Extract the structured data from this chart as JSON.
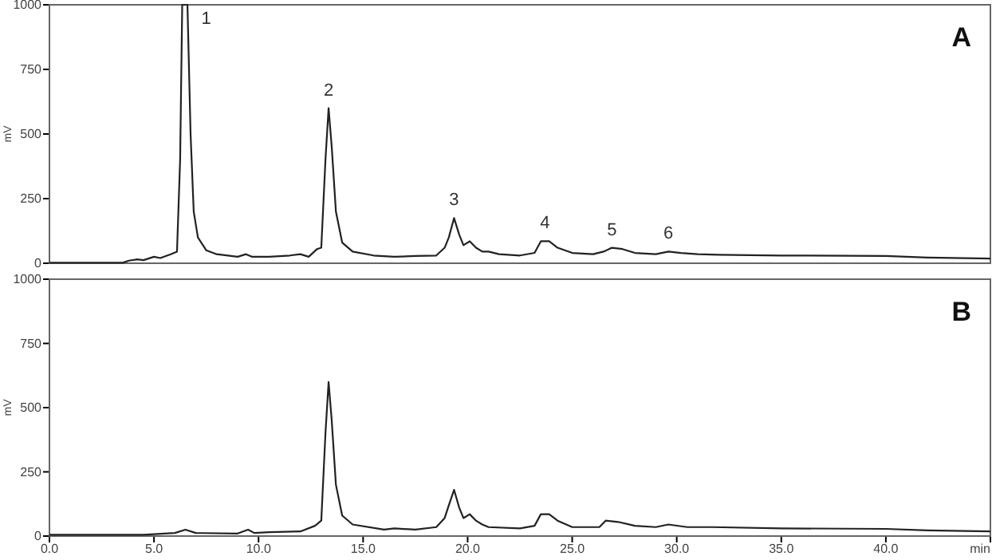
{
  "chart_data": [
    {
      "type": "line",
      "title": "A",
      "ylabel": "mV",
      "xlim": [
        0,
        45
      ],
      "ylim": [
        0,
        1000
      ],
      "yticks": [
        0,
        250,
        500,
        750,
        1000
      ],
      "tick_labels": "y",
      "grid": false,
      "annotations": [
        {
          "text": "1",
          "x": 6.5,
          "y": 1000
        },
        {
          "text": "2",
          "x": 13.35,
          "y": 600
        },
        {
          "text": "3",
          "x": 19.35,
          "y": 175
        },
        {
          "text": "4",
          "x": 23.7,
          "y": 85
        },
        {
          "text": "5",
          "x": 26.9,
          "y": 60
        },
        {
          "text": "6",
          "x": 29.6,
          "y": 45
        }
      ],
      "series": [
        {
          "color": "#222222",
          "x": [
            0,
            3.5,
            3.8,
            4.2,
            4.5,
            5.0,
            5.3,
            5.8,
            6.1,
            6.25,
            6.35,
            6.6,
            6.75,
            6.9,
            7.1,
            7.5,
            8.0,
            9.0,
            9.4,
            9.7,
            10.5,
            11.5,
            12.0,
            12.4,
            12.8,
            13.0,
            13.2,
            13.35,
            13.5,
            13.7,
            14.0,
            14.5,
            15.5,
            16.5,
            17.5,
            18.5,
            18.9,
            19.1,
            19.35,
            19.6,
            19.8,
            20.1,
            20.4,
            20.7,
            21.0,
            21.5,
            22.5,
            23.2,
            23.5,
            23.9,
            24.3,
            25.0,
            26.0,
            26.5,
            26.9,
            27.4,
            28.0,
            29.0,
            29.6,
            30.2,
            31.0,
            32.0,
            35.0,
            40.0,
            42.0,
            45.0
          ],
          "values": [
            2,
            2,
            10,
            15,
            12,
            25,
            20,
            35,
            45,
            400,
            1000,
            1000,
            500,
            200,
            100,
            50,
            35,
            25,
            35,
            25,
            25,
            30,
            35,
            25,
            55,
            60,
            400,
            600,
            450,
            200,
            80,
            45,
            30,
            25,
            28,
            30,
            60,
            100,
            175,
            110,
            70,
            85,
            60,
            45,
            45,
            35,
            30,
            40,
            85,
            85,
            60,
            40,
            35,
            45,
            60,
            55,
            40,
            35,
            45,
            40,
            35,
            33,
            30,
            28,
            22,
            18
          ]
        }
      ]
    },
    {
      "type": "line",
      "title": "B",
      "ylabel": "mV",
      "xlim": [
        0,
        45
      ],
      "ylim": [
        0,
        1000
      ],
      "xticks": [
        {
          "value": 0,
          "label": "0.0"
        },
        {
          "value": 5,
          "label": "5.0"
        },
        {
          "value": 10,
          "label": "10.0"
        },
        {
          "value": 15,
          "label": "15.0"
        },
        {
          "value": 20,
          "label": "20.0"
        },
        {
          "value": 25,
          "label": "25.0"
        },
        {
          "value": 30,
          "label": "30.0"
        },
        {
          "value": 35,
          "label": "35.0"
        },
        {
          "value": 40,
          "label": "40.0"
        },
        {
          "value": 45,
          "label": "min"
        }
      ],
      "yticks": [
        0,
        250,
        500,
        750,
        1000
      ],
      "grid": false,
      "series": [
        {
          "color": "#222222",
          "x": [
            0,
            4.5,
            6.0,
            6.5,
            7.0,
            9.0,
            9.5,
            9.8,
            10.5,
            12.0,
            12.7,
            13.0,
            13.2,
            13.35,
            13.5,
            13.7,
            14.0,
            14.5,
            16.0,
            16.5,
            17.5,
            18.5,
            18.9,
            19.1,
            19.35,
            19.6,
            19.8,
            20.1,
            20.4,
            20.7,
            21.0,
            22.5,
            23.2,
            23.5,
            23.9,
            24.3,
            25.0,
            26.3,
            26.6,
            27.2,
            28.0,
            29.0,
            29.6,
            30.5,
            31.7,
            35.0,
            40.0,
            42.0,
            45.0
          ],
          "values": [
            5,
            5,
            12,
            25,
            12,
            10,
            25,
            12,
            15,
            18,
            40,
            60,
            400,
            600,
            450,
            200,
            80,
            45,
            25,
            30,
            25,
            35,
            70,
            120,
            180,
            110,
            70,
            85,
            60,
            45,
            35,
            30,
            40,
            85,
            85,
            60,
            35,
            35,
            60,
            55,
            40,
            35,
            45,
            35,
            35,
            30,
            28,
            22,
            18
          ]
        }
      ]
    }
  ]
}
